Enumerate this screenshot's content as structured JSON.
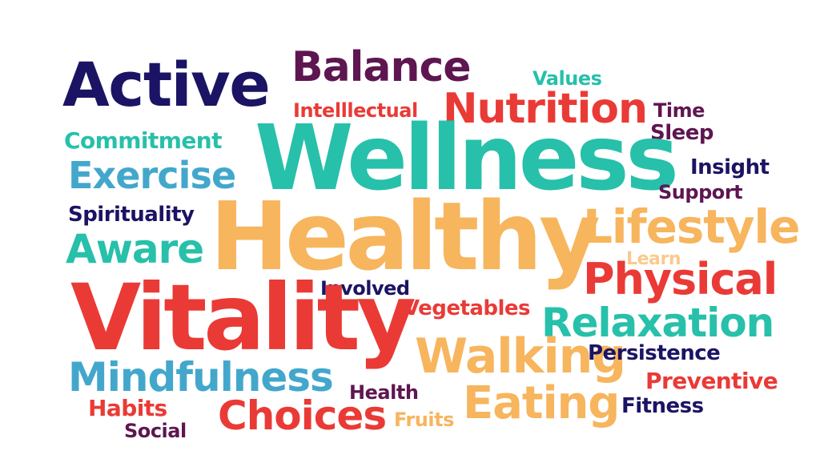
{
  "palette": {
    "navy": "#1b1464",
    "purple": "#5e1651",
    "teal": "#27c0aa",
    "red": "#ea3a36",
    "orange": "#f7b55d",
    "blue": "#43a7cc",
    "background": "#ffffff"
  },
  "words": {
    "active": "Active",
    "balance": "Balance",
    "values": "Values",
    "intellectual": "Intelllectual",
    "nutrition": "Nutrition",
    "time": "Time",
    "sleep": "Sleep",
    "commitment": "Commitment",
    "wellness": "Wellness",
    "exercise": "Exercise",
    "insight": "Insight",
    "support": "Support",
    "spirituality": "Spirituality",
    "healthy": "Healthy",
    "lifestyle": "Lifestyle",
    "aware": "Aware",
    "learn": "Learn",
    "physical": "Physical",
    "involved": "Involved",
    "vitality": "Vitality",
    "vegetables": "Vegetables",
    "relaxation": "Relaxation",
    "walking": "Walking",
    "persistence": "Persistence",
    "mindfulness": "Mindfulness",
    "preventive": "Preventive",
    "health": "Health",
    "eating": "Eating",
    "fitness": "Fitness",
    "habits": "Habits",
    "choices": "Choices",
    "fruits": "Fruits",
    "social": "Social"
  }
}
